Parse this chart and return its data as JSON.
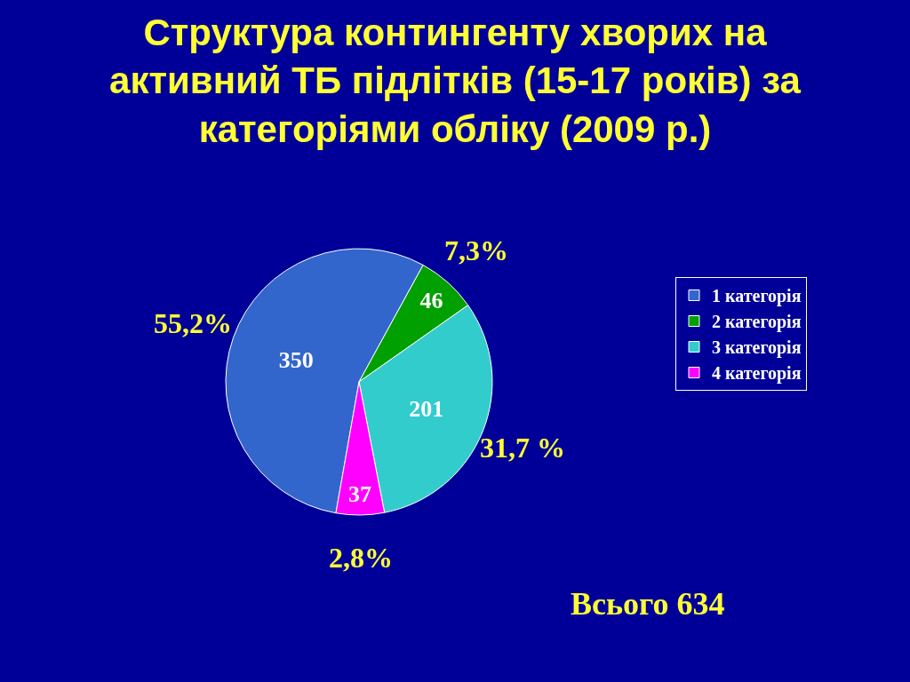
{
  "chart_data": {
    "type": "pie",
    "title": "Структура контингенту хворих на активний ТБ підлітків (15-17 років) за категоріями обліку (2009 р.)",
    "categories": [
      "1 категорія",
      "2 категорія",
      "3 категорія",
      "4 категорія"
    ],
    "values": [
      350,
      46,
      201,
      37
    ],
    "colors": [
      "#3366cc",
      "#00a000",
      "#33cccc",
      "#ff00ff"
    ],
    "data_labels": true,
    "legend": "top right",
    "annotations": [
      "55,2%",
      "7,3%",
      "31,7 %",
      "2,8%",
      "Всього 634"
    ]
  }
}
